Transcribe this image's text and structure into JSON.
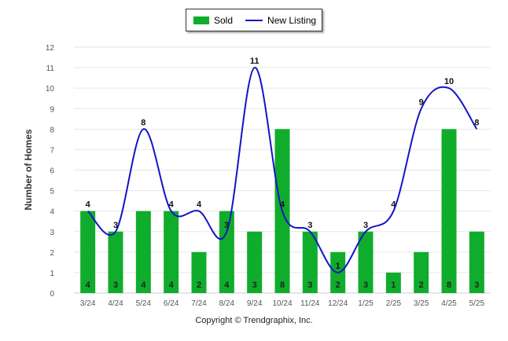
{
  "legend": {
    "sold_label": "Sold",
    "new_listing_label": "New Listing"
  },
  "copyright": "Copyright © Trendgraphix, Inc.",
  "colors": {
    "sold": "#10ac2c",
    "new_listing": "#1414c8",
    "grid": "#e6e6e6",
    "axis_text": "#555555"
  },
  "chart_data": {
    "type": "bar",
    "title": "",
    "xlabel": "",
    "ylabel": "Number of Homes",
    "ylim": [
      0,
      12
    ],
    "yticks": [
      0,
      1,
      2,
      3,
      4,
      5,
      6,
      7,
      8,
      9,
      10,
      11,
      12
    ],
    "grid": true,
    "legend_position": "top-center",
    "categories": [
      "3/24",
      "4/24",
      "5/24",
      "6/24",
      "7/24",
      "8/24",
      "9/24",
      "10/24",
      "11/24",
      "12/24",
      "1/25",
      "2/25",
      "3/25",
      "4/25",
      "5/25"
    ],
    "series": [
      {
        "name": "Sold",
        "type": "bar",
        "values": [
          4,
          3,
          4,
          4,
          2,
          4,
          3,
          8,
          3,
          2,
          3,
          1,
          2,
          8,
          3
        ]
      },
      {
        "name": "New Listing",
        "type": "line",
        "smooth": true,
        "values": [
          4,
          3,
          8,
          4,
          4,
          3,
          11,
          4,
          3,
          1,
          3,
          4,
          9,
          10,
          8
        ]
      }
    ]
  }
}
